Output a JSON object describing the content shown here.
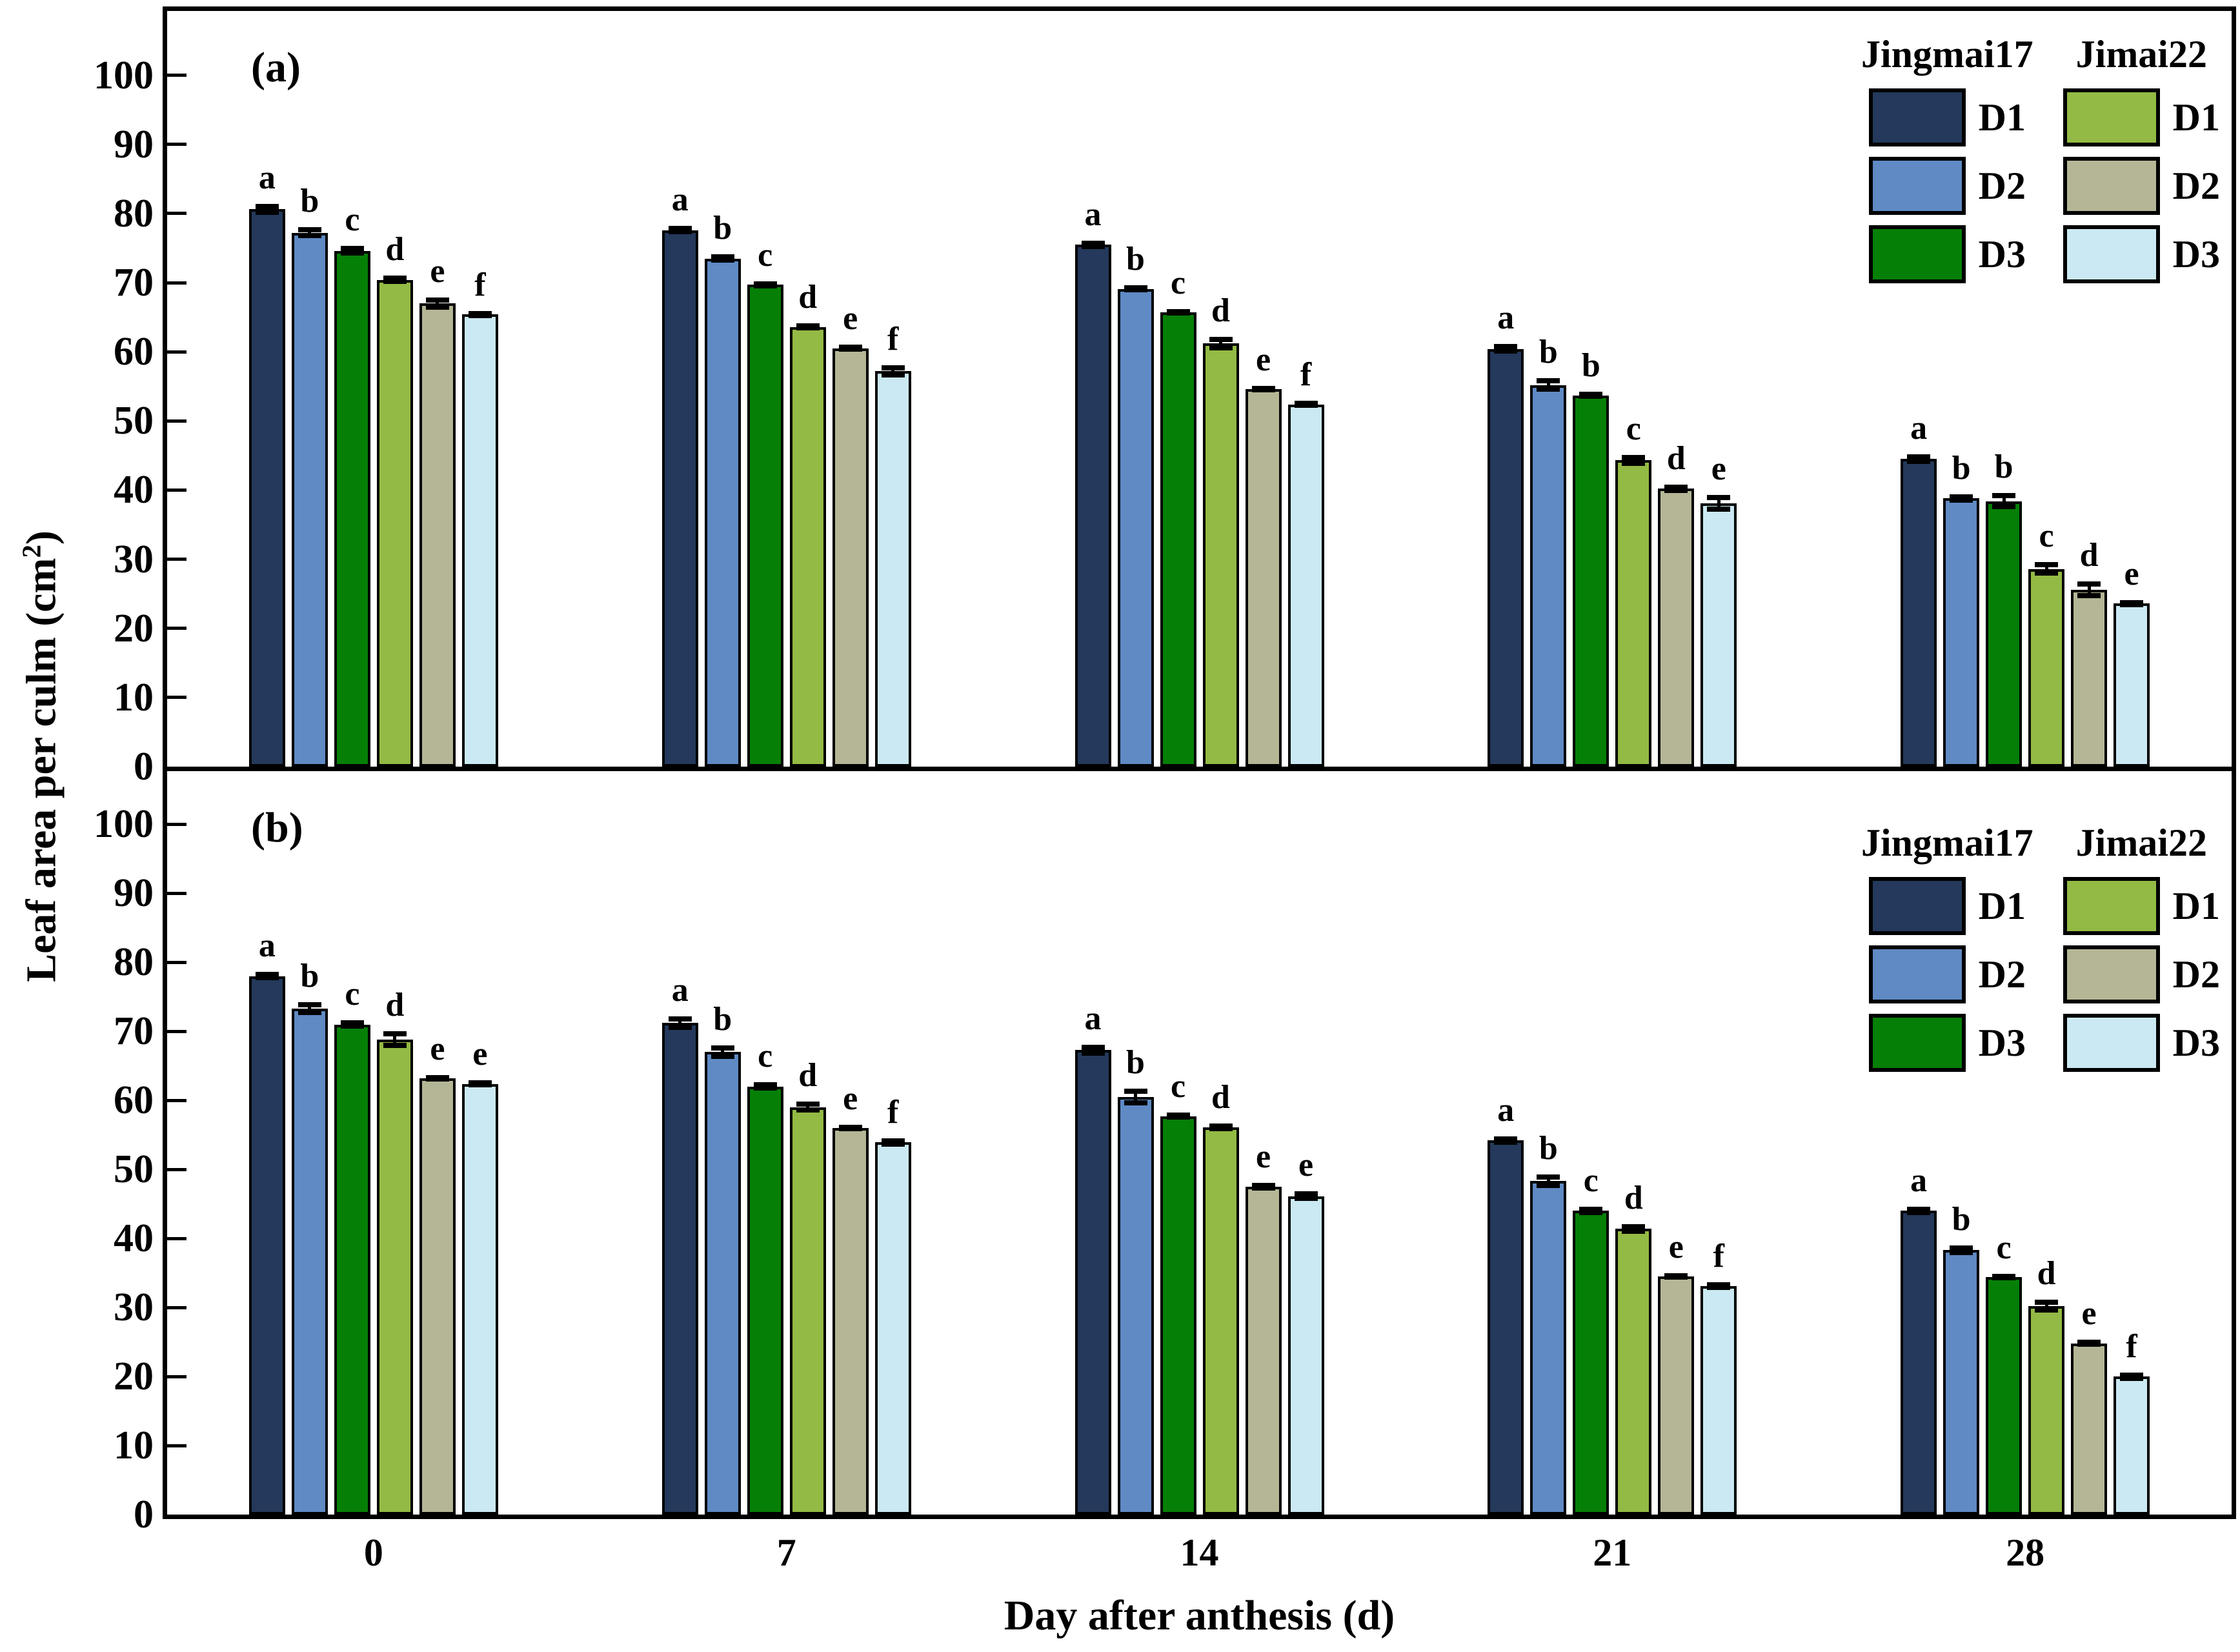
{
  "axes": {
    "ylabel_prefix": "Leaf area per culm (cm",
    "ylabel_sup": "2",
    "ylabel_suffix": ")",
    "xlabel": "Day after anthesis (d)",
    "y_ticks": [
      0,
      10,
      20,
      30,
      40,
      50,
      60,
      70,
      80,
      90,
      100
    ],
    "x_categories": [
      "0",
      "7",
      "14",
      "21",
      "28"
    ]
  },
  "legend": {
    "columns": [
      {
        "title": "Jingmai17",
        "items": [
          {
            "label": "D1",
            "color": "#24395B"
          },
          {
            "label": "D2",
            "color": "#5F8AC4"
          },
          {
            "label": "D3",
            "color": "#067F06"
          }
        ]
      },
      {
        "title": "Jimai22",
        "items": [
          {
            "label": "D1",
            "color": "#93BA44"
          },
          {
            "label": "D2",
            "color": "#B5B696"
          },
          {
            "label": "D3",
            "color": "#CBE9F2"
          }
        ]
      }
    ]
  },
  "chart_data": [
    {
      "panel": "a",
      "type": "bar",
      "title": "(a)",
      "xlabel": "Day after anthesis (d)",
      "ylabel": "Leaf area per culm (cm2)",
      "ylim": [
        0,
        110
      ],
      "grid": false,
      "legend_position": "top-right",
      "categories": [
        "0",
        "7",
        "14",
        "21",
        "28"
      ],
      "series": [
        {
          "name": "Jingmai17 D1",
          "color": "#24395B",
          "values": [
            80.6,
            77.6,
            75.5,
            60.4,
            44.5
          ],
          "errors": [
            0.8,
            0.6,
            0.6,
            0.7,
            0.7
          ],
          "letters": [
            "a",
            "a",
            "a",
            "a",
            "a"
          ]
        },
        {
          "name": "Jingmai17 D2",
          "color": "#5F8AC4",
          "values": [
            77.2,
            73.5,
            69.1,
            55.2,
            38.8
          ],
          "errors": [
            0.8,
            0.6,
            0.5,
            1.0,
            0.6
          ],
          "letters": [
            "b",
            "b",
            "b",
            "b",
            "b"
          ]
        },
        {
          "name": "Jingmai17 D3",
          "color": "#067F06",
          "values": [
            74.6,
            69.7,
            65.7,
            53.7,
            38.4
          ],
          "errors": [
            0.7,
            0.5,
            0.5,
            0.5,
            1.2
          ],
          "letters": [
            "c",
            "c",
            "c",
            "b",
            "b"
          ]
        },
        {
          "name": "Jimai22 D1",
          "color": "#93BA44",
          "values": [
            70.4,
            63.6,
            61.2,
            44.3,
            28.6
          ],
          "errors": [
            0.6,
            0.5,
            1.0,
            0.8,
            1.0
          ],
          "letters": [
            "d",
            "d",
            "d",
            "c",
            "c"
          ]
        },
        {
          "name": "Jimai22 D2",
          "color": "#B5B696",
          "values": [
            67.0,
            60.5,
            54.6,
            40.2,
            25.6
          ],
          "errors": [
            0.9,
            0.5,
            0.5,
            0.6,
            1.2
          ],
          "letters": [
            "e",
            "e",
            "e",
            "d",
            "d"
          ]
        },
        {
          "name": "Jimai22 D3",
          "color": "#CBE9F2",
          "values": [
            65.4,
            57.2,
            52.4,
            38.1,
            23.6
          ],
          "errors": [
            0.5,
            0.9,
            0.5,
            1.2,
            0.5
          ],
          "letters": [
            "f",
            "f",
            "f",
            "e",
            "e"
          ]
        }
      ]
    },
    {
      "panel": "b",
      "type": "bar",
      "title": "(b)",
      "xlabel": "Day after anthesis (d)",
      "ylabel": "Leaf area per culm (cm2)",
      "ylim": [
        0,
        110
      ],
      "grid": false,
      "legend_position": "top-right",
      "categories": [
        "0",
        "7",
        "14",
        "21",
        "28"
      ],
      "series": [
        {
          "name": "Jingmai17 D1",
          "color": "#24395B",
          "values": [
            78.0,
            71.2,
            67.3,
            54.2,
            44.0
          ],
          "errors": [
            0.6,
            1.0,
            0.8,
            0.6,
            0.6
          ],
          "letters": [
            "a",
            "a",
            "a",
            "a",
            "a"
          ]
        },
        {
          "name": "Jingmai17 D2",
          "color": "#5F8AC4",
          "values": [
            73.3,
            67.0,
            60.5,
            48.3,
            38.3
          ],
          "errors": [
            0.9,
            1.0,
            1.2,
            1.0,
            0.7
          ],
          "letters": [
            "b",
            "b",
            "b",
            "b",
            "b"
          ]
        },
        {
          "name": "Jingmai17 D3",
          "color": "#067F06",
          "values": [
            71.0,
            62.0,
            57.7,
            44.0,
            34.4
          ],
          "errors": [
            0.6,
            0.6,
            0.5,
            0.6,
            0.5
          ],
          "letters": [
            "c",
            "c",
            "c",
            "c",
            "c"
          ]
        },
        {
          "name": "Jimai22 D1",
          "color": "#93BA44",
          "values": [
            68.8,
            59.0,
            56.1,
            41.4,
            30.2
          ],
          "errors": [
            1.2,
            0.8,
            0.6,
            0.7,
            0.9
          ],
          "letters": [
            "d",
            "d",
            "d",
            "d",
            "d"
          ]
        },
        {
          "name": "Jimai22 D2",
          "color": "#B5B696",
          "values": [
            63.2,
            56.0,
            47.5,
            34.5,
            24.8
          ],
          "errors": [
            0.5,
            0.5,
            0.6,
            0.5,
            0.5
          ],
          "letters": [
            "e",
            "e",
            "e",
            "e",
            "e"
          ]
        },
        {
          "name": "Jimai22 D3",
          "color": "#CBE9F2",
          "values": [
            62.4,
            53.9,
            46.1,
            33.1,
            20.0
          ],
          "errors": [
            0.5,
            0.6,
            0.7,
            0.6,
            0.6
          ],
          "letters": [
            "e",
            "f",
            "e",
            "f",
            "f"
          ]
        }
      ]
    }
  ]
}
